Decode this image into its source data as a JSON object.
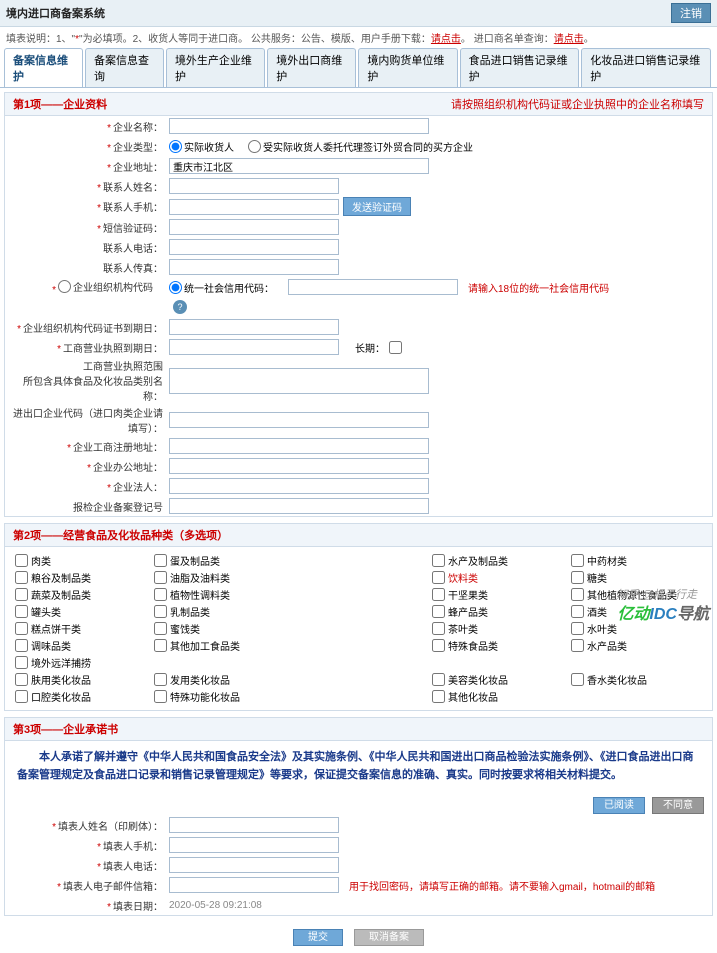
{
  "header": {
    "title": "境内进口商备案系统",
    "back_btn": "注销"
  },
  "info_bar": {
    "prefix": "填表说明：1、\"",
    "star": "*",
    "mid1": "\"为必填项。2、收货人等同于进口商。  公共服务：公告、模版、用户手册下载：",
    "link1": "请点击",
    "mid2": "。  进口商名单查询：",
    "link2": "请点击",
    "suffix": "。"
  },
  "tabs": [
    "备案信息维护",
    "备案信息查询",
    "境外生产企业维护",
    "境外出口商维护",
    "境内购货单位维护",
    "食品进口销售记录维护",
    "化妆品进口销售记录维护"
  ],
  "section1": {
    "title": "第1项——企业资料",
    "header_hint": "请按照组织机构代码证或企业执照中的企业名称填写",
    "fields": {
      "name": "企业名称：",
      "type": "企业类型：",
      "type_opt1": "实际收货人",
      "type_opt2": "受实际收货人委托代理签订外贸合同的买方企业",
      "addr": "企业地址：",
      "addr_val": "重庆市江北区",
      "contact": "联系人姓名：",
      "phone": "联系人手机：",
      "send_btn": "发送验证码",
      "sms": "短信验证码：",
      "tel": "联系人电话：",
      "fax": "联系人传真：",
      "code_type": "企业组织机构代码",
      "code_type2": "统一社会信用代码：",
      "code_hint": "请输入18位的统一社会信用代码",
      "code_date": "企业组织机构代码证书到期日：",
      "license_date": "工商营业执照到期日：",
      "longterm": "长期：",
      "license_scope": "工商营业执照范围",
      "scope_sub": "所包含具体食品及化妆品类别名称：",
      "ie_code": "进出口企业代码（进口肉类企业请填写）：",
      "reg_addr": "企业工商注册地址：",
      "office_addr": "企业办公地址：",
      "legal": "企业法人：",
      "reg_no": "报检企业备案登记号"
    }
  },
  "section2": {
    "title": "第2项——经营食品及化妆品种类（多选项）",
    "items": [
      {
        "t": "肉类"
      },
      {
        "t": "蛋及制品类"
      },
      {
        "t": ""
      },
      {
        "t": "水产及制品类"
      },
      {
        "t": "中药材类"
      },
      {
        "t": "粮谷及制品类"
      },
      {
        "t": "油脂及油料类"
      },
      {
        "t": ""
      },
      {
        "t": "饮料类",
        "r": true
      },
      {
        "t": "糖类"
      },
      {
        "t": "蔬菜及制品类"
      },
      {
        "t": "植物性调料类"
      },
      {
        "t": ""
      },
      {
        "t": "干坚果类"
      },
      {
        "t": "其他植物源性食品类"
      },
      {
        "t": "罐头类"
      },
      {
        "t": "乳制品类"
      },
      {
        "t": ""
      },
      {
        "t": "蜂产品类"
      },
      {
        "t": "酒类"
      },
      {
        "t": "糕点饼干类"
      },
      {
        "t": "蜜饯类"
      },
      {
        "t": ""
      },
      {
        "t": "茶叶类"
      },
      {
        "t": "水叶类"
      },
      {
        "t": "调味品类"
      },
      {
        "t": "其他加工食品类"
      },
      {
        "t": ""
      },
      {
        "t": "特殊食品类"
      },
      {
        "t": "水产品类"
      },
      {
        "t": "境外远洋捕捞"
      },
      {
        "t": ""
      },
      {
        "t": ""
      },
      {
        "t": ""
      },
      {
        "t": ""
      },
      {
        "t": "肤用类化妆品"
      },
      {
        "t": "发用类化妆品"
      },
      {
        "t": ""
      },
      {
        "t": "美容类化妆品"
      },
      {
        "t": "香水类化妆品"
      },
      {
        "t": "口腔类化妆品"
      },
      {
        "t": "特殊功能化妆品"
      },
      {
        "t": ""
      },
      {
        "t": "其他化妆品"
      },
      {
        "t": ""
      }
    ]
  },
  "section3": {
    "title": "第3项——企业承诺书",
    "text": "本人承诺了解并遵守《中华人民共和国食品安全法》及其实施条例、《中华人民共和国进出口商品检验法实施条例》、《进口食品进出口商备案管理规定及食品进口记录和销售记录管理规定》等要求，保证提交备案信息的准确、真实。同时按要求将相关材料提交。",
    "btn_agree": "已阅读",
    "btn_disagree": "不同意",
    "signer": "填表人姓名（印刷体）：",
    "signer_phone": "填表人手机：",
    "signer_tel": "填表人电话：",
    "signer_email": "填表人电子邮件信箱：",
    "email_hint": "用于找回密码，请填写正确的邮箱。请不要输入gmail，hotmail的邮箱",
    "fill_date": "填表日期：",
    "fill_date_val": "2020-05-28 09:21:08"
  },
  "footer": {
    "submit": "提交",
    "clear": "取消备案"
  },
  "zhihu": "知乎 @橘子行走",
  "wm1": "亿动",
  "wm2": "IDC",
  "wm3": "导航"
}
